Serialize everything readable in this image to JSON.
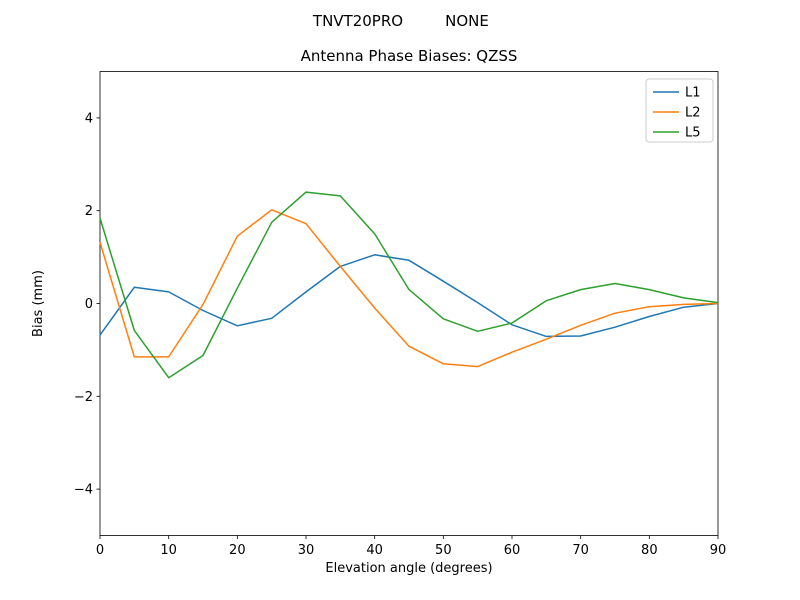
{
  "header": {
    "suptitle_left": "TNVT20PRO",
    "suptitle_right": "NONE"
  },
  "chart_data": {
    "type": "line",
    "title": "Antenna Phase Biases: QZSS",
    "xlabel": "Elevation angle (degrees)",
    "ylabel": "Bias (mm)",
    "x": [
      0,
      5,
      10,
      15,
      20,
      25,
      30,
      35,
      40,
      45,
      50,
      55,
      60,
      65,
      70,
      75,
      80,
      85,
      90
    ],
    "series": [
      {
        "name": "L1",
        "color": "#1f77b4",
        "values": [
          -0.68,
          0.35,
          0.25,
          -0.15,
          -0.48,
          -0.32,
          0.25,
          0.8,
          1.05,
          0.93,
          0.48,
          0.02,
          -0.46,
          -0.71,
          -0.7,
          -0.51,
          -0.28,
          -0.08,
          0.0
        ]
      },
      {
        "name": "L2",
        "color": "#ff7f0e",
        "values": [
          1.32,
          -1.15,
          -1.15,
          -0.02,
          1.45,
          2.02,
          1.72,
          0.8,
          -0.1,
          -0.92,
          -1.3,
          -1.36,
          -1.05,
          -0.77,
          -0.47,
          -0.21,
          -0.07,
          -0.02,
          0.0
        ]
      },
      {
        "name": "L5",
        "color": "#2ca02c",
        "values": [
          1.84,
          -0.58,
          -1.6,
          -1.12,
          0.33,
          1.75,
          2.4,
          2.32,
          1.5,
          0.3,
          -0.33,
          -0.6,
          -0.42,
          0.06,
          0.3,
          0.43,
          0.3,
          0.12,
          0.02
        ]
      }
    ],
    "xlim": [
      0,
      90
    ],
    "ylim": [
      -5,
      5
    ],
    "xticks": [
      0,
      10,
      20,
      30,
      40,
      50,
      60,
      70,
      80,
      90
    ],
    "yticks": [
      -4,
      -2,
      0,
      2,
      4
    ],
    "grid": false,
    "legend": {
      "position": "upper right",
      "entries": [
        "L1",
        "L2",
        "L5"
      ]
    }
  },
  "colors": {
    "axes": "#000000",
    "background": "#ffffff",
    "legend_border": "#cccccc",
    "series_blue": "#1f77b4",
    "series_orange": "#ff7f0e",
    "series_green": "#2ca02c"
  }
}
